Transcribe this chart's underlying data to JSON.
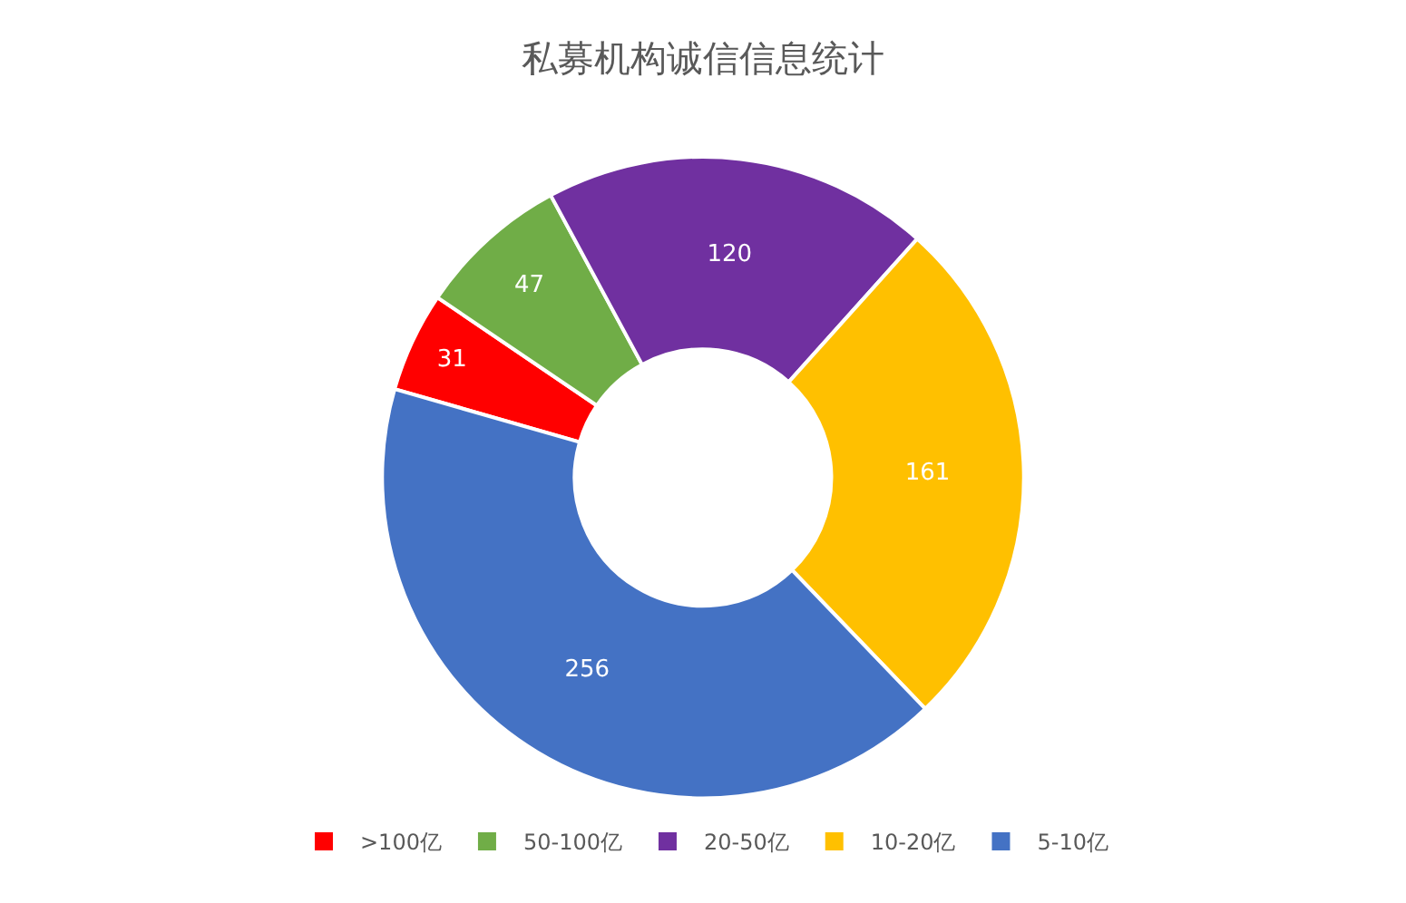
{
  "chart_data": {
    "type": "donut",
    "title": "私募机构诚信信息统计",
    "categories": [
      ">100亿",
      "50-100亿",
      "20-50亿",
      "10-20亿",
      "5-10亿"
    ],
    "values": [
      31,
      47,
      120,
      161,
      256
    ],
    "colors": [
      "#ff0000",
      "#70ad47",
      "#7030a0",
      "#ffc000",
      "#4472c4"
    ],
    "data_labels": true,
    "legend": "bottom"
  }
}
